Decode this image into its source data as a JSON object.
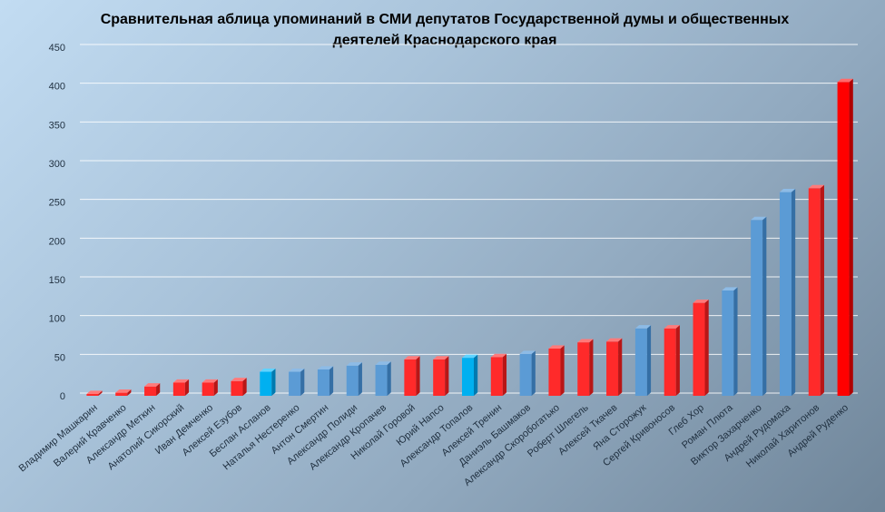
{
  "chart_data": {
    "type": "bar",
    "title": "Сравнительная аблица упоминаний в СМИ депутатов Государственной думы и общественных деятелей Краснодарского края",
    "xlabel": "",
    "ylabel": "",
    "ylim": [
      0,
      450
    ],
    "yticks": [
      0,
      50,
      100,
      150,
      200,
      250,
      300,
      350,
      400,
      450
    ],
    "grid": true,
    "legend": "none",
    "colors": {
      "red": "#ff2a2a",
      "blue": "#5b9bd5",
      "cyan": "#00b0f0",
      "darkred": "#ff0000"
    },
    "categories": [
      "Владимир Машкарин",
      "Валерий Кравченко",
      "Александр Меткин",
      "Анатолий Сикорский",
      "Иван Демченко",
      "Алексей Езубов",
      "Беслан Асланов",
      "Наталья Нестеренко",
      "Антон Смертин",
      "Александр Полиди",
      "Александр Кропачев",
      "Николай Горовой",
      "Юрий Напсо",
      "Александр Топалов",
      "Алексей Тренин",
      "Даниэль Башмаков",
      "Александр Скоробогатько",
      "Роберт Шлегель",
      "Алексей Ткачев",
      "Яна Сторожук",
      "Сергей Кривоносов",
      "Глеб Хор",
      "Роман Плюта",
      "Виктор Захарченко",
      "Андрей Рудомаха",
      "Николай Харитонов",
      "Андрей Руденко"
    ],
    "values": [
      2,
      4,
      12,
      17,
      17,
      19,
      31,
      31,
      34,
      39,
      40,
      47,
      47,
      49,
      50,
      54,
      61,
      69,
      70,
      87,
      87,
      120,
      136,
      227,
      263,
      268,
      405
    ],
    "bar_colors": [
      "red",
      "red",
      "red",
      "red",
      "red",
      "red",
      "cyan",
      "blue",
      "blue",
      "blue",
      "blue",
      "red",
      "red",
      "cyan",
      "red",
      "blue",
      "red",
      "red",
      "red",
      "blue",
      "red",
      "red",
      "blue",
      "blue",
      "blue",
      "red",
      "darkred"
    ]
  }
}
